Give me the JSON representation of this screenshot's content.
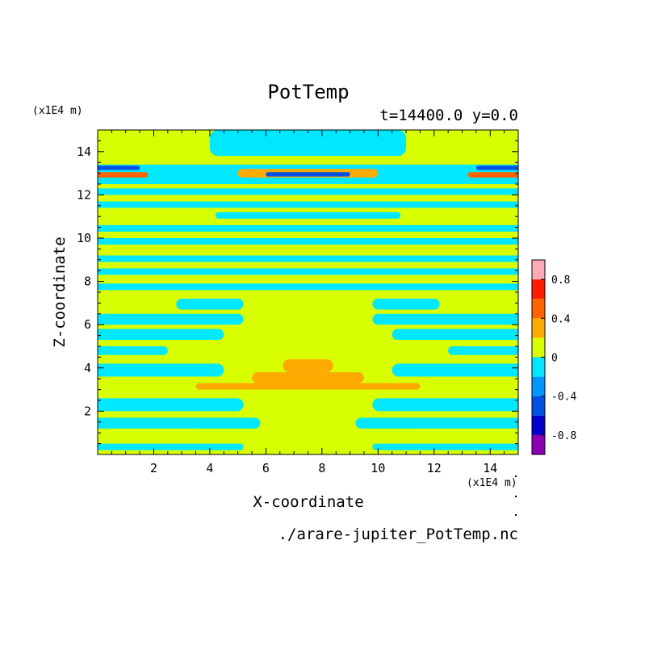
{
  "chart_data": {
    "type": "heatmap",
    "title": "PotTemp",
    "subtitle": "t=14400.0 y=0.0",
    "xlabel": "X-coordinate",
    "ylabel": "Z-coordinate",
    "x_unit": "(x1E4 m)",
    "y_unit": "(x1E4 m)",
    "footer": "./arare-jupiter_PotTemp.nc",
    "xlim": [
      0,
      15
    ],
    "ylim": [
      0,
      15
    ],
    "x_ticks": [
      2,
      4,
      6,
      8,
      10,
      12,
      14
    ],
    "y_ticks": [
      2,
      4,
      6,
      8,
      10,
      12,
      14
    ],
    "colorbar": {
      "levels": [
        -1.0,
        -0.8,
        -0.6,
        -0.4,
        -0.2,
        0.0,
        0.2,
        0.4,
        0.6,
        0.8,
        1.0
      ],
      "colors": [
        "#8a00b0",
        "#0000c8",
        "#0050e6",
        "#0096ff",
        "#00e8ff",
        "#d7ff00",
        "#ffaa00",
        "#ff6400",
        "#ff1e00",
        "#ffaab4"
      ],
      "tick_labels": [
        "-0.8",
        "-0.4",
        "0",
        "0.4",
        "0.8"
      ],
      "tick_values": [
        -0.8,
        -0.4,
        0.0,
        0.4,
        0.8
      ]
    },
    "background_value": 0.1,
    "bands": [
      {
        "x": [
          0.0,
          5.2
        ],
        "z": [
          0.2,
          0.5
        ],
        "v": -0.1
      },
      {
        "x": [
          9.8,
          15.0
        ],
        "z": [
          0.2,
          0.5
        ],
        "v": -0.1
      },
      {
        "x": [
          0.0,
          5.8
        ],
        "z": [
          1.2,
          1.7
        ],
        "v": -0.1
      },
      {
        "x": [
          9.2,
          15.0
        ],
        "z": [
          1.2,
          1.7
        ],
        "v": -0.1
      },
      {
        "x": [
          0.0,
          5.2
        ],
        "z": [
          2.0,
          2.6
        ],
        "v": -0.1
      },
      {
        "x": [
          9.8,
          15.0
        ],
        "z": [
          2.0,
          2.6
        ],
        "v": -0.1
      },
      {
        "x": [
          3.5,
          11.5
        ],
        "z": [
          3.0,
          3.3
        ],
        "v": 0.3
      },
      {
        "x": [
          5.5,
          9.5
        ],
        "z": [
          3.3,
          3.8
        ],
        "v": 0.3
      },
      {
        "x": [
          6.6,
          8.4
        ],
        "z": [
          3.8,
          4.4
        ],
        "v": 0.3
      },
      {
        "x": [
          0.0,
          4.5
        ],
        "z": [
          3.6,
          4.2
        ],
        "v": -0.1
      },
      {
        "x": [
          10.5,
          15.0
        ],
        "z": [
          3.6,
          4.2
        ],
        "v": -0.1
      },
      {
        "x": [
          0.0,
          2.5
        ],
        "z": [
          4.6,
          5.0
        ],
        "v": -0.1
      },
      {
        "x": [
          12.5,
          15.0
        ],
        "z": [
          4.6,
          5.0
        ],
        "v": -0.1
      },
      {
        "x": [
          0.0,
          4.5
        ],
        "z": [
          5.3,
          5.8
        ],
        "v": -0.1
      },
      {
        "x": [
          10.5,
          15.0
        ],
        "z": [
          5.3,
          5.8
        ],
        "v": -0.1
      },
      {
        "x": [
          0.0,
          5.2
        ],
        "z": [
          6.0,
          6.5
        ],
        "v": -0.1
      },
      {
        "x": [
          9.8,
          15.0
        ],
        "z": [
          6.0,
          6.5
        ],
        "v": -0.1
      },
      {
        "x": [
          2.8,
          5.2
        ],
        "z": [
          6.7,
          7.2
        ],
        "v": -0.1
      },
      {
        "x": [
          9.8,
          12.2
        ],
        "z": [
          6.7,
          7.2
        ],
        "v": -0.1
      },
      {
        "x": [
          0.0,
          15.0
        ],
        "z": [
          7.6,
          7.9
        ],
        "v": -0.1
      },
      {
        "x": [
          0.0,
          15.0
        ],
        "z": [
          8.3,
          8.6
        ],
        "v": -0.1
      },
      {
        "x": [
          0.0,
          15.0
        ],
        "z": [
          8.9,
          9.2
        ],
        "v": -0.1
      },
      {
        "x": [
          0.0,
          15.0
        ],
        "z": [
          9.7,
          10.0
        ],
        "v": -0.1
      },
      {
        "x": [
          0.0,
          15.0
        ],
        "z": [
          10.3,
          10.6
        ],
        "v": -0.1
      },
      {
        "x": [
          4.2,
          10.8
        ],
        "z": [
          10.9,
          11.2
        ],
        "v": -0.1
      },
      {
        "x": [
          0.0,
          15.0
        ],
        "z": [
          11.4,
          11.7
        ],
        "v": -0.1
      },
      {
        "x": [
          0.0,
          15.0
        ],
        "z": [
          12.0,
          12.3
        ],
        "v": -0.1
      },
      {
        "x": [
          0.0,
          15.0
        ],
        "z": [
          12.5,
          13.4
        ],
        "v": -0.1
      },
      {
        "x": [
          5.0,
          10.0
        ],
        "z": [
          12.8,
          13.2
        ],
        "v": 0.3
      },
      {
        "x": [
          6.0,
          9.0
        ],
        "z": [
          12.85,
          13.05
        ],
        "v": -0.5
      },
      {
        "x": [
          0.0,
          1.8
        ],
        "z": [
          12.8,
          13.05
        ],
        "v": 0.5
      },
      {
        "x": [
          13.2,
          15.0
        ],
        "z": [
          12.8,
          13.05
        ],
        "v": 0.5
      },
      {
        "x": [
          0.0,
          1.5
        ],
        "z": [
          13.15,
          13.35
        ],
        "v": -0.5
      },
      {
        "x": [
          13.5,
          15.0
        ],
        "z": [
          13.15,
          13.35
        ],
        "v": -0.5
      },
      {
        "x": [
          4.0,
          11.0
        ],
        "z": [
          13.8,
          15.0
        ],
        "v": -0.1
      }
    ]
  }
}
